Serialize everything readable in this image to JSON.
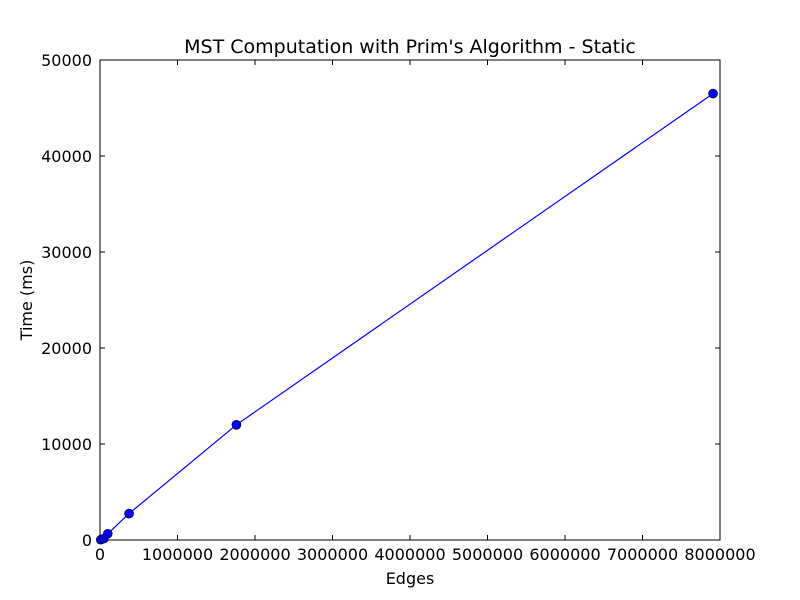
{
  "chart_data": {
    "type": "line",
    "title": "MST Computation with Prim's Algorithm - Static",
    "xlabel": "Edges",
    "ylabel": "Time (ms)",
    "xlim": [
      0,
      8000000
    ],
    "ylim": [
      0,
      50000
    ],
    "xticks": [
      0,
      1000000,
      2000000,
      3000000,
      4000000,
      5000000,
      6000000,
      7000000,
      8000000
    ],
    "yticks": [
      0,
      10000,
      20000,
      30000,
      40000,
      50000
    ],
    "xtick_labels": [
      "0",
      "1000000",
      "2000000",
      "3000000",
      "4000000",
      "5000000",
      "6000000",
      "7000000",
      "8000000"
    ],
    "ytick_labels": [
      "0",
      "10000",
      "20000",
      "30000",
      "40000",
      "50000"
    ],
    "grid": false,
    "series": [
      {
        "color": "#0000ff",
        "marker": "circle",
        "x": [
          10000,
          50000,
          100000,
          375000,
          1760000,
          7910000
        ],
        "y": [
          30,
          150,
          650,
          2750,
          12000,
          46500
        ]
      }
    ]
  }
}
